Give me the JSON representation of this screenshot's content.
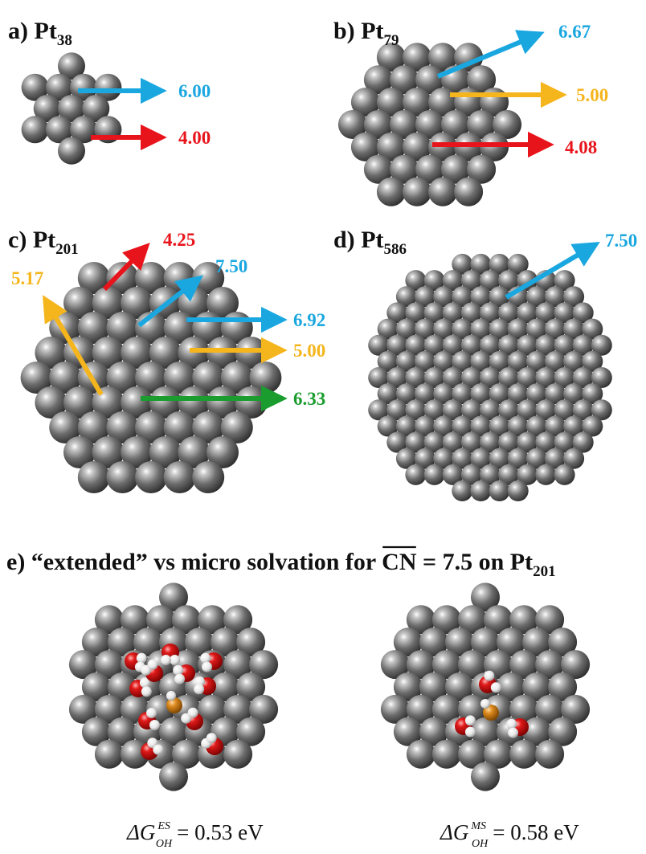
{
  "colors": {
    "blue": "#1aa7e0",
    "red": "#e8141b",
    "orange": "#f5b51c",
    "green": "#1a9d2e",
    "atom": "#8a8a8a",
    "oxygen": "#d41111",
    "hydrogen": "#f2f2f2",
    "adsorbate": "#d9821c"
  },
  "panels": [
    {
      "label": "a)",
      "element": "Pt",
      "size": "38",
      "annotations": [
        {
          "value": "6.00",
          "color": "blue"
        },
        {
          "value": "4.00",
          "color": "red"
        }
      ]
    },
    {
      "label": "b)",
      "element": "Pt",
      "size": "79",
      "annotations": [
        {
          "value": "6.67",
          "color": "blue"
        },
        {
          "value": "5.00",
          "color": "orange"
        },
        {
          "value": "4.08",
          "color": "red"
        }
      ]
    },
    {
      "label": "c)",
      "element": "Pt",
      "size": "201",
      "annotations": [
        {
          "value": "4.25",
          "color": "red"
        },
        {
          "value": "7.50",
          "color": "blue"
        },
        {
          "value": "5.17",
          "color": "orange"
        },
        {
          "value": "6.92",
          "color": "blue"
        },
        {
          "value": "5.00",
          "color": "orange"
        },
        {
          "value": "6.33",
          "color": "green"
        }
      ]
    },
    {
      "label": "d)",
      "element": "Pt",
      "size": "586",
      "annotations": [
        {
          "value": "7.50",
          "color": "blue"
        }
      ]
    }
  ],
  "panel_e": {
    "title_prefix": "e) “extended” vs micro solvation for",
    "cn_symbol": "CN",
    "title_mid": "= 7.5 on",
    "element": "Pt",
    "size": "201",
    "left_caption": {
      "symbol": "ΔG",
      "sup": "ES",
      "sub": "OH",
      "rest": "= 0.53 eV"
    },
    "right_caption": {
      "symbol": "ΔG",
      "sup": "MS",
      "sub": "OH",
      "rest": "= 0.58 eV"
    }
  }
}
